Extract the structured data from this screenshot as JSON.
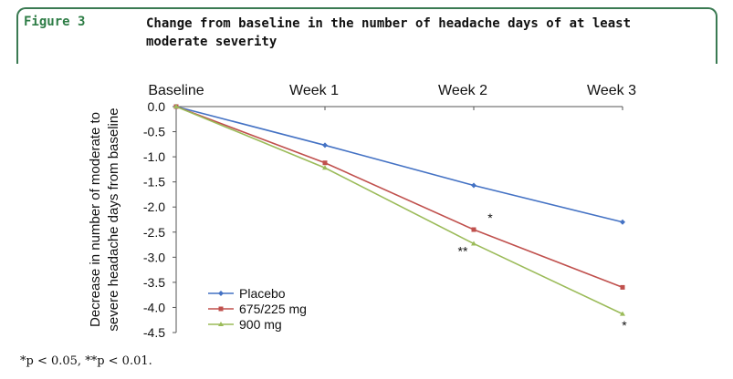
{
  "figure": {
    "label": "Figure 3",
    "title": "Change from baseline in the number of headache days of at least moderate severity"
  },
  "footnote": "*p < 0.05, **p < 0.01.",
  "chart_data": {
    "type": "line",
    "categories": [
      "Baseline",
      "Week 1",
      "Week 2",
      "Week 3"
    ],
    "ylabel_lines": [
      "Decrease in number of moderate to",
      "severe headache days from baseline"
    ],
    "xlabel": "",
    "ylim": [
      -4.5,
      0.0
    ],
    "yticks": [
      0.0,
      -0.5,
      -1.0,
      -1.5,
      -2.0,
      -2.5,
      -3.0,
      -3.5,
      -4.0,
      -4.5
    ],
    "ytick_labels": [
      "0.0",
      "-0.5",
      "-1.0",
      "-1.5",
      "-2.0",
      "-2.5",
      "-3.0",
      "-3.5",
      "-4.0",
      "-4.5"
    ],
    "grid": false,
    "legend_position": "bottom-left",
    "series": [
      {
        "name": "Placebo",
        "values": [
          0.0,
          -0.77,
          -1.57,
          -2.3
        ],
        "color": "#4472c4"
      },
      {
        "name": "675/225 mg",
        "values": [
          0.0,
          -1.12,
          -2.45,
          -3.6
        ],
        "color": "#c0504d"
      },
      {
        "name": "900 mg",
        "values": [
          0.0,
          -1.22,
          -2.73,
          -4.13
        ],
        "color": "#9bbb59"
      }
    ],
    "annotations": [
      {
        "text": "*",
        "category": "Week 2",
        "y": -2.3
      },
      {
        "text": "**",
        "category": "Week 2",
        "y": -2.97
      },
      {
        "text": "*",
        "category": "Week 3",
        "y": -4.45
      }
    ]
  }
}
